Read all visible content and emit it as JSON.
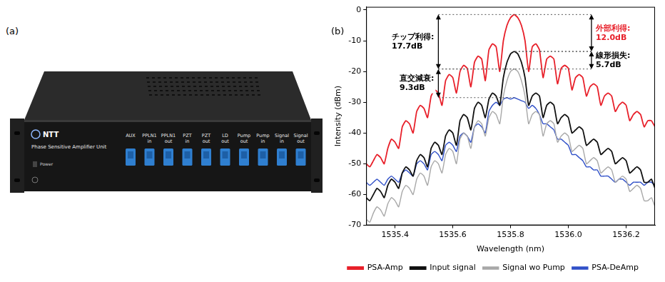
{
  "photo": {
    "label": "(a)",
    "logo": "NTT",
    "title": "Phase Sensitive Amplifier Unit",
    "switch_label": "Power",
    "ports": [
      "AUX",
      "PPLN1 in",
      "PPLN1 out",
      "PZT in",
      "PZT out",
      "LD out",
      "Pump out",
      "Pump in",
      "Signal in",
      "Signal out"
    ]
  },
  "chart_data": {
    "panel_label": "(b)",
    "type": "line",
    "x_label": "Wavelength (nm)",
    "y_label": "Intensity (dBm)",
    "x": [
      1535.3,
      1535.3125,
      1535.325,
      1535.3375,
      1535.35,
      1535.3625,
      1535.375,
      1535.3875,
      1535.4,
      1535.4125,
      1535.425,
      1535.4375,
      1535.45,
      1535.4625,
      1535.475,
      1535.4875,
      1535.5,
      1535.5125,
      1535.525,
      1535.5375,
      1535.55,
      1535.5625,
      1535.575,
      1535.5875,
      1535.6,
      1535.6125,
      1535.625,
      1535.6375,
      1535.65,
      1535.6625,
      1535.675,
      1535.6875,
      1535.7,
      1535.7125,
      1535.725,
      1535.7375,
      1535.75,
      1535.7625,
      1535.775,
      1535.7875,
      1535.8,
      1535.8125,
      1535.825,
      1535.8375,
      1535.85,
      1535.8625,
      1535.875,
      1535.8875,
      1535.9,
      1535.9125,
      1535.925,
      1535.9375,
      1535.95,
      1535.9625,
      1535.975,
      1535.9875,
      1536.0,
      1536.0125,
      1536.025,
      1536.0375,
      1536.05,
      1536.0625,
      1536.075,
      1536.0875,
      1536.1,
      1536.1125,
      1536.125,
      1536.1375,
      1536.15,
      1536.1625,
      1536.175,
      1536.1875,
      1536.2,
      1536.2125,
      1536.225,
      1536.2375,
      1536.25,
      1536.2625,
      1536.275,
      1536.2875,
      1536.3
    ],
    "series": [
      {
        "name": "PSA-Amp",
        "color": "#e8202a",
        "values": [
          -50,
          -51,
          -49,
          -47,
          -48,
          -50,
          -45,
          -42,
          -43,
          -45,
          -38,
          -36,
          -37,
          -40,
          -33,
          -31,
          -32,
          -35,
          -28,
          -26,
          -27,
          -31,
          -23,
          -21,
          -22,
          -27,
          -20,
          -18,
          -19,
          -25,
          -17,
          -15,
          -16,
          -23,
          -13,
          -11,
          -12,
          -20,
          -10,
          -5,
          -2.5,
          -1.5,
          -2.5,
          -5,
          -10,
          -20,
          -12,
          -11,
          -13,
          -22,
          -16,
          -15,
          -16,
          -24,
          -19,
          -18,
          -19,
          -26,
          -22,
          -21,
          -22,
          -28,
          -25,
          -24,
          -25,
          -31,
          -28,
          -27,
          -28,
          -33,
          -31,
          -30,
          -31,
          -36,
          -34,
          -33,
          -34,
          -38,
          -36,
          -36,
          -38
        ]
      },
      {
        "name": "Input signal",
        "color": "#111111",
        "values": [
          -61,
          -62,
          -60,
          -58,
          -59,
          -61,
          -57,
          -55,
          -56,
          -58,
          -53,
          -51,
          -52,
          -54,
          -49,
          -47,
          -48,
          -51,
          -45,
          -43,
          -44,
          -47,
          -41,
          -39,
          -40,
          -44,
          -36,
          -34,
          -35,
          -39,
          -32,
          -30,
          -31,
          -35,
          -29,
          -27,
          -28,
          -31,
          -22,
          -17,
          -14.3,
          -13.5,
          -14.3,
          -17,
          -22,
          -31,
          -28,
          -27,
          -28,
          -35,
          -31,
          -30,
          -31,
          -37,
          -35,
          -34,
          -35,
          -40,
          -39,
          -38,
          -39,
          -44,
          -43,
          -42,
          -43,
          -47,
          -46,
          -45,
          -46,
          -50,
          -49,
          -48,
          -49,
          -53,
          -52,
          -51,
          -52,
          -56,
          -56,
          -55,
          -58
        ]
      },
      {
        "name": "Signal wo Pump",
        "color": "#a8a8a8",
        "values": [
          -68,
          -69,
          -66,
          -64,
          -65,
          -67,
          -63,
          -61,
          -62,
          -64,
          -59,
          -57,
          -58,
          -60,
          -55,
          -53,
          -54,
          -57,
          -51,
          -49,
          -50,
          -53,
          -47,
          -45,
          -46,
          -50,
          -42,
          -40,
          -41,
          -45,
          -38,
          -36,
          -37,
          -41,
          -35,
          -33,
          -34,
          -37,
          -28,
          -23,
          -20,
          -19.2,
          -20,
          -23,
          -28,
          -37,
          -34,
          -33,
          -34,
          -41,
          -37,
          -36,
          -37,
          -43,
          -41,
          -40,
          -41,
          -46,
          -45,
          -44,
          -45,
          -50,
          -49,
          -48,
          -49,
          -53,
          -52,
          -51,
          -52,
          -56,
          -55,
          -54,
          -55,
          -59,
          -58,
          -57,
          -58,
          -62,
          -62,
          -61,
          -64
        ]
      },
      {
        "name": "PSA-DeAmp",
        "color": "#3050c8",
        "values": [
          -56,
          -57,
          -56,
          -55,
          -56,
          -57,
          -55,
          -54,
          -55,
          -56,
          -53,
          -52,
          -53,
          -54,
          -50,
          -49,
          -50,
          -52,
          -47,
          -46,
          -47,
          -49,
          -44,
          -43,
          -44,
          -46,
          -41,
          -40,
          -41,
          -43,
          -38,
          -37,
          -38,
          -40,
          -33,
          -31,
          -30,
          -31,
          -29,
          -28.5,
          -29,
          -28.5,
          -29,
          -29.5,
          -30,
          -32,
          -31,
          -32,
          -34,
          -37,
          -37,
          -38,
          -39,
          -42,
          -42,
          -43,
          -44,
          -47,
          -47,
          -48,
          -49,
          -51,
          -51,
          -52,
          -52,
          -54,
          -54,
          -54,
          -55,
          -56,
          -55,
          -55,
          -56,
          -57,
          -56,
          -56,
          -56,
          -57,
          -56,
          -56,
          -57
        ]
      }
    ],
    "xlim": [
      1535.3,
      1536.3
    ],
    "xticks": [
      1535.4,
      1535.6,
      1535.8,
      {
        "value": 1536,
        "label": "1536.0"
      },
      1536.2
    ],
    "ylim": [
      -70,
      1
    ],
    "yticks": [
      -70,
      -60,
      -50,
      -40,
      -30,
      -20,
      -10,
      0
    ],
    "grid": false,
    "legend": "bottom",
    "annotations": [
      {
        "text": [
          "チップ利得:",
          "17.7dB"
        ],
        "x": 1535.55,
        "from": -1.5,
        "to": -19.2,
        "color": "#000000"
      },
      {
        "text": [
          "直交減衰:",
          "9.3dB"
        ],
        "x": 1535.55,
        "from": -19.2,
        "to": -28.5,
        "color": "#000000"
      },
      {
        "text": [
          "外部利得:",
          "12.0dB"
        ],
        "x": 1536.08,
        "from": -1.5,
        "to": -13.5,
        "color": "#e8202a"
      },
      {
        "text": [
          "線形損失:",
          "5.7dB"
        ],
        "x": 1536.08,
        "from": -13.5,
        "to": -19.2,
        "color": "#000000"
      }
    ]
  }
}
